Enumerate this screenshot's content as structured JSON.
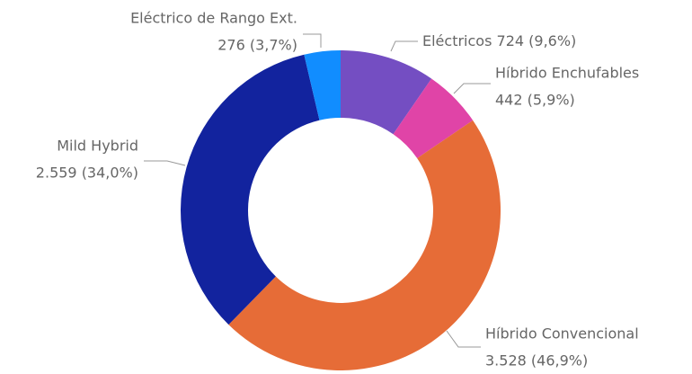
{
  "chart_data": {
    "type": "donut",
    "categories": [
      "Eléctricos",
      "Híbrido Enchufables",
      "Híbrido Convencional",
      "Mild Hybrid",
      "Eléctrico de Rango Ext."
    ],
    "values": [
      724,
      442,
      3528,
      2559,
      276
    ],
    "value_labels": [
      "724 (9,6%)",
      "442 (5,9%)",
      "3.528 (46,9%)",
      "2.559 (34,0%)",
      "276 (3,7%)"
    ],
    "colors": [
      "#744EC2",
      "#E044A7",
      "#E66C37",
      "#12239E",
      "#118DFF"
    ]
  }
}
